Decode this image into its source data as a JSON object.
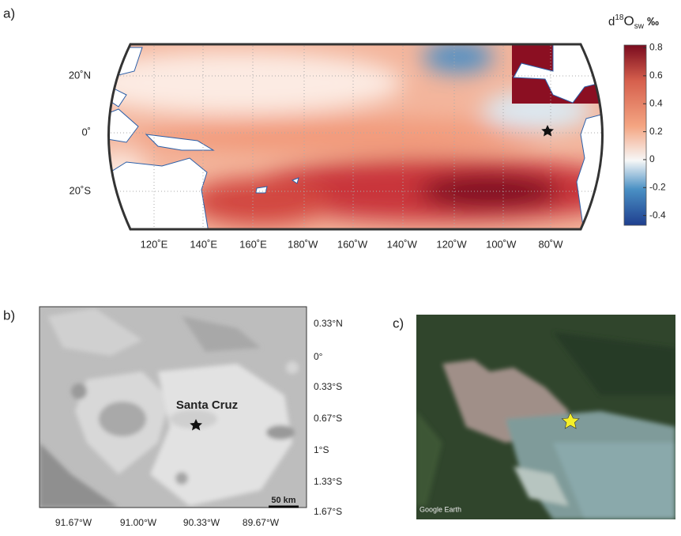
{
  "panel_a": {
    "label": "a)",
    "colorbar": {
      "title": {
        "d": "d",
        "sup": "18",
        "o": "O",
        "sub": "sw",
        "unit": "‰"
      },
      "lim": [
        -0.47,
        0.82
      ],
      "ticks": [
        0.8,
        0.6,
        0.4,
        0.2,
        0,
        -0.2,
        -0.4
      ]
    },
    "lat_labels": [
      "20˚N",
      "0˚",
      "20˚S"
    ],
    "lon_labels": [
      "120˚E",
      "140˚E",
      "160˚E",
      "180˚W",
      "160˚W",
      "140˚W",
      "120˚W",
      "100˚W",
      "80˚W"
    ]
  },
  "panel_b": {
    "label": "b)",
    "place": "Santa Cruz",
    "scale": "50 km",
    "lat_labels": [
      "0.33°N",
      "0°",
      "0.33°S",
      "0.67°S",
      "1°S",
      "1.33°S",
      "1.67°S"
    ],
    "lon_labels": [
      "91.67°W",
      "91.00°W",
      "90.33°W",
      "89.67°W"
    ]
  },
  "panel_c": {
    "label": "c)",
    "credit": "Google Earth"
  }
}
